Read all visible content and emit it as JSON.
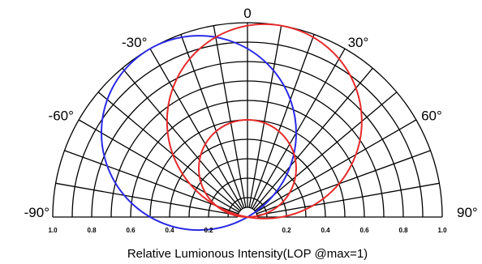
{
  "chart_data": {
    "type": "polar",
    "xlabel": "Relative Lumionous Intensity(LOP @max=1)",
    "angle_labels": [
      {
        "angle": 0,
        "text": "0"
      },
      {
        "angle": -30,
        "text": "-30°"
      },
      {
        "angle": 30,
        "text": "30°"
      },
      {
        "angle": -60,
        "text": "-60°"
      },
      {
        "angle": 60,
        "text": "60°"
      },
      {
        "angle": -90,
        "text": "-90°"
      },
      {
        "angle": 90,
        "text": "90°"
      }
    ],
    "radial_tick_labels": [
      {
        "value": -1.0,
        "text": "1.0"
      },
      {
        "value": -0.8,
        "text": "0.8"
      },
      {
        "value": -0.6,
        "text": "0.6"
      },
      {
        "value": -0.4,
        "text": "0.4"
      },
      {
        "value": -0.2,
        "text": "0.2"
      },
      {
        "value": 0.2,
        "text": "0.2"
      },
      {
        "value": 0.4,
        "text": "0.4"
      },
      {
        "value": 0.6,
        "text": "0.6"
      },
      {
        "value": 0.8,
        "text": "0.8"
      },
      {
        "value": 1.0,
        "text": "1.0"
      }
    ],
    "radial_range": [
      0,
      1.0
    ],
    "radial_grid": [
      0.05,
      0.1,
      0.2,
      0.3,
      0.4,
      0.5,
      0.6,
      0.7,
      0.8,
      0.9,
      1.0
    ],
    "angular_grid_step_deg": 10,
    "angle_range": [
      -90,
      90
    ],
    "grid": true,
    "series": [
      {
        "color": "#2a2ae6",
        "shape": "circle",
        "center_angle": -30,
        "diameter": 1.0
      },
      {
        "color": "#e62a2a",
        "shape": "circle",
        "center_angle": 10,
        "diameter": 1.0
      },
      {
        "color": "#e62a2a",
        "shape": "circle",
        "center_angle": 0,
        "diameter": 0.5
      }
    ]
  }
}
